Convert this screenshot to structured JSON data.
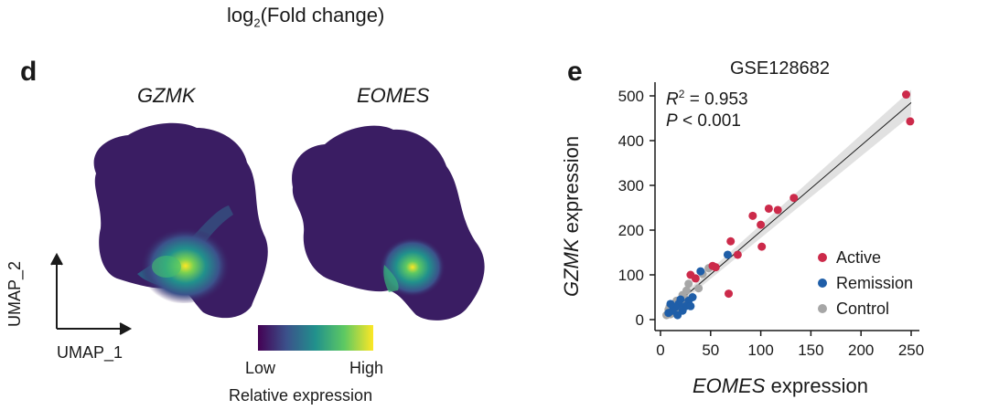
{
  "top_label": {
    "prefix": "log",
    "sub": "2",
    "suffix": "(Fold change)"
  },
  "panel_d": {
    "letter": "d",
    "umap_titles": [
      "GZMK",
      "EOMES"
    ],
    "axis_x": "UMAP_1",
    "axis_y": "UMAP_2",
    "colorbar": {
      "low": "Low",
      "high": "High",
      "title": "Relative expression",
      "colors": [
        "#440154",
        "#3b528b",
        "#21918c",
        "#5ec962",
        "#fde725"
      ]
    }
  },
  "panel_e": {
    "letter": "e",
    "title": "GSE128682",
    "r2_label": "R",
    "r2_sup": "2",
    "r2_value": " = 0.953",
    "p_label": "P",
    "p_value": " < 0.001",
    "xlabel_gene": "EOMES",
    "xlabel_suffix": " expression",
    "ylabel_gene": "GZMK",
    "ylabel_suffix": " expression"
  },
  "chart_data": {
    "type": "scatter",
    "title": "GSE128682",
    "xlabel": "EOMES expression",
    "ylabel": "GZMK expression",
    "xlim": [
      0,
      255
    ],
    "ylim": [
      0,
      510
    ],
    "xticks": [
      0,
      50,
      100,
      150,
      200,
      250
    ],
    "yticks": [
      0,
      100,
      200,
      300,
      400,
      500
    ],
    "legend_position": "bottom-right",
    "fit_line": {
      "x": [
        5,
        250
      ],
      "y": [
        15,
        485
      ]
    },
    "series": [
      {
        "name": "Active",
        "color": "#cc2a4a",
        "points": [
          [
            245,
            503
          ],
          [
            249,
            443
          ],
          [
            133,
            272
          ],
          [
            117,
            245
          ],
          [
            108,
            248
          ],
          [
            92,
            232
          ],
          [
            100,
            212
          ],
          [
            101,
            163
          ],
          [
            77,
            145
          ],
          [
            70,
            175
          ],
          [
            55,
            117
          ],
          [
            52,
            120
          ],
          [
            35,
            92
          ],
          [
            30,
            100
          ],
          [
            68,
            58
          ]
        ]
      },
      {
        "name": "Remission",
        "color": "#1f5ea8",
        "points": [
          [
            67,
            145
          ],
          [
            40,
            108
          ],
          [
            32,
            50
          ],
          [
            28,
            42
          ],
          [
            25,
            30
          ],
          [
            20,
            45
          ],
          [
            18,
            35
          ],
          [
            17,
            10
          ],
          [
            15,
            28
          ],
          [
            12,
            20
          ],
          [
            10,
            35
          ],
          [
            8,
            15
          ],
          [
            22,
            20
          ],
          [
            30,
            30
          ]
        ]
      },
      {
        "name": "Control",
        "color": "#a6a6a6",
        "points": [
          [
            6,
            10
          ],
          [
            8,
            22
          ],
          [
            10,
            12
          ],
          [
            12,
            30
          ],
          [
            14,
            18
          ],
          [
            16,
            42
          ],
          [
            18,
            25
          ],
          [
            20,
            35
          ],
          [
            22,
            55
          ],
          [
            24,
            48
          ],
          [
            26,
            65
          ],
          [
            28,
            80
          ],
          [
            38,
            70
          ],
          [
            42,
            102
          ],
          [
            48,
            115
          ],
          [
            24,
            40
          ],
          [
            9,
            28
          ],
          [
            13,
            24
          ]
        ]
      }
    ]
  }
}
